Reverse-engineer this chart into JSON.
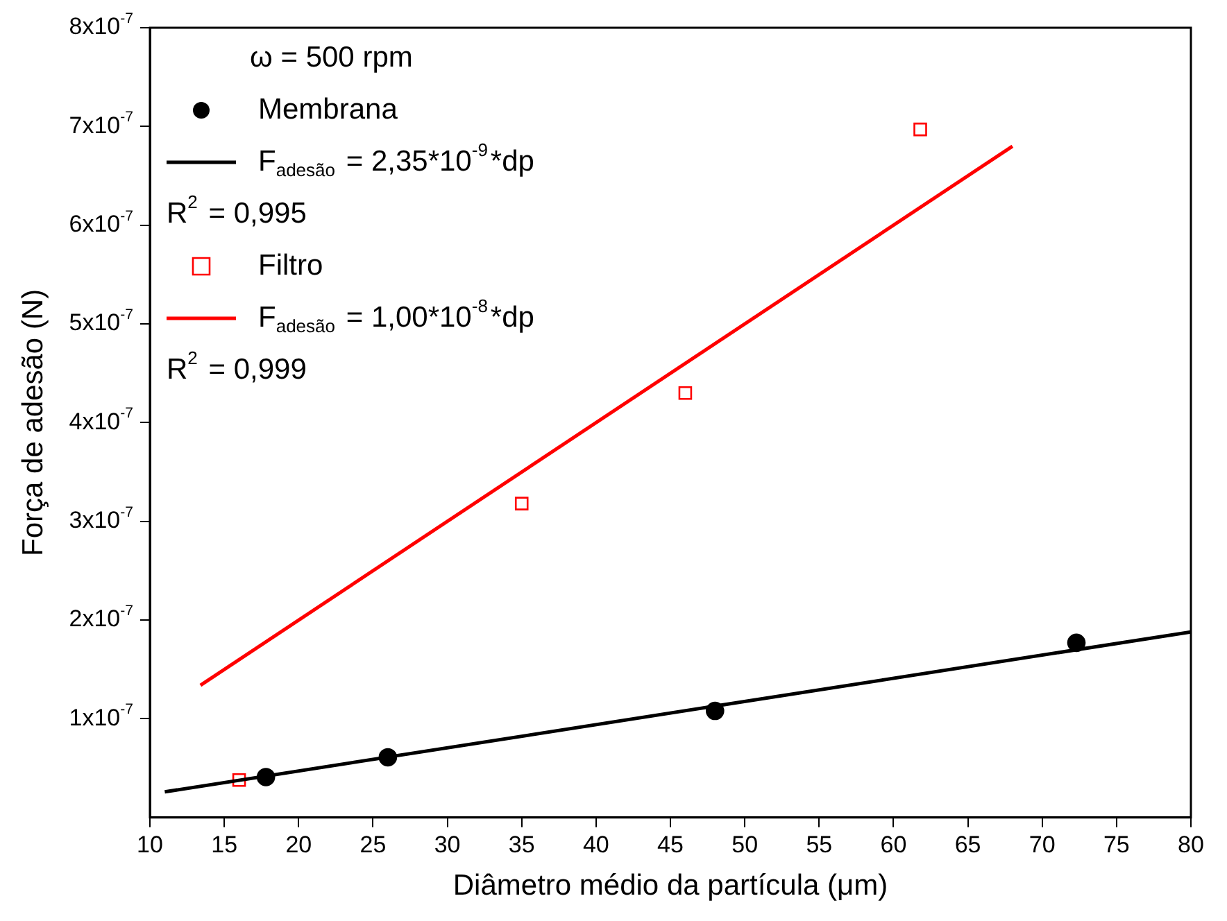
{
  "chart_data": {
    "type": "scatter",
    "xlabel": "Diâmetro médio da partícula (μm)",
    "ylabel": "Força de adesão (N)",
    "annotations": [
      "ω = 500 rpm",
      "R$^{2}$ = 0,995",
      "R$^{2}$ = 0,999"
    ],
    "series": [
      {
        "name": "Membrana",
        "type": "scatter",
        "marker": "circle",
        "color": "#000000",
        "x": [
          17.8,
          26,
          48,
          72.3
        ],
        "values": [
          4.1e-08,
          6.1e-08,
          1.08e-07,
          1.77e-07
        ]
      },
      {
        "name": "F$_{adesão}$ = 2,35*10$^{-9}$*dp",
        "type": "line",
        "marker": "none",
        "color": "#000000",
        "x": [
          11,
          80
        ],
        "values": [
          2.6e-08,
          1.88e-07
        ]
      },
      {
        "name": "Filtro",
        "type": "scatter",
        "marker": "square",
        "color": "#ff0000",
        "x": [
          16,
          35,
          46,
          61.8
        ],
        "values": [
          3.8e-08,
          3.18e-07,
          4.3e-07,
          6.97e-07
        ]
      },
      {
        "name": "F$_{adesão}$ = 1,00*10$^{-8}$*dp",
        "type": "line",
        "marker": "none",
        "color": "#ff0000",
        "x": [
          13.4,
          68
        ],
        "values": [
          1.34e-07,
          6.8e-07
        ]
      }
    ],
    "xlim": [
      10,
      80
    ],
    "xticks": [
      10,
      15,
      20,
      25,
      30,
      35,
      40,
      45,
      50,
      55,
      60,
      65,
      70,
      75,
      80
    ],
    "ylim": [
      0,
      8e-07
    ],
    "yticks": [
      {
        "value": 1e-07,
        "label": "1x10$^{-7}$"
      },
      {
        "value": 2e-07,
        "label": "2x10$^{-7}$"
      },
      {
        "value": 3e-07,
        "label": "3x10$^{-7}$"
      },
      {
        "value": 4e-07,
        "label": "4x10$^{-7}$"
      },
      {
        "value": 5e-07,
        "label": "5x10$^{-7}$"
      },
      {
        "value": 6e-07,
        "label": "6x10$^{-7}$"
      },
      {
        "value": 7e-07,
        "label": "7x10$^{-7}$"
      },
      {
        "value": 8e-07,
        "label": "8x10$^{-7}$"
      }
    ],
    "grid": false,
    "legend": "top left"
  }
}
